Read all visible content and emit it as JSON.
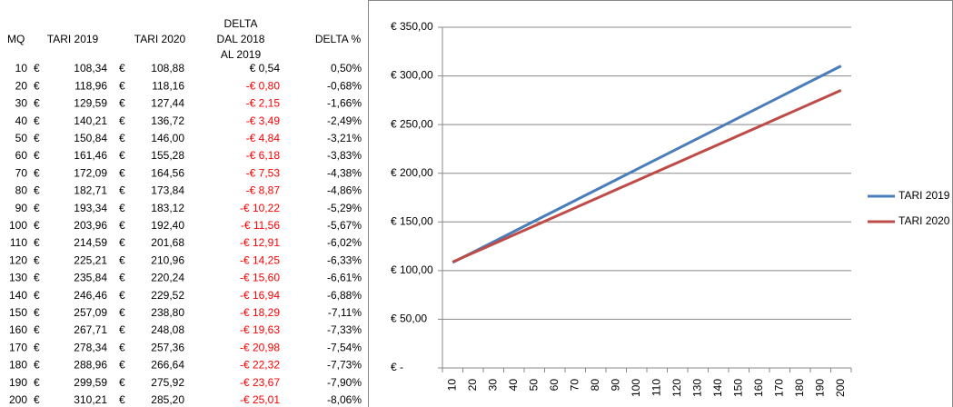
{
  "table": {
    "header": [
      "MQ",
      "TARI 2019",
      "TARI 2020",
      [
        "DELTA",
        "DAL 2018",
        "AL 2019"
      ],
      "DELTA %"
    ],
    "rows": [
      [
        "10",
        "€",
        "108,34",
        "€",
        "108,88",
        "€ 0,54",
        "0,50%"
      ],
      [
        "20",
        "€",
        "118,96",
        "€",
        "118,16",
        "-€ 0,80",
        "-0,68%"
      ],
      [
        "30",
        "€",
        "129,59",
        "€",
        "127,44",
        "-€ 2,15",
        "-1,66%"
      ],
      [
        "40",
        "€",
        "140,21",
        "€",
        "136,72",
        "-€ 3,49",
        "-2,49%"
      ],
      [
        "50",
        "€",
        "150,84",
        "€",
        "146,00",
        "-€ 4,84",
        "-3,21%"
      ],
      [
        "60",
        "€",
        "161,46",
        "€",
        "155,28",
        "-€ 6,18",
        "-3,83%"
      ],
      [
        "70",
        "€",
        "172,09",
        "€",
        "164,56",
        "-€ 7,53",
        "-4,38%"
      ],
      [
        "80",
        "€",
        "182,71",
        "€",
        "173,84",
        "-€ 8,87",
        "-4,86%"
      ],
      [
        "90",
        "€",
        "193,34",
        "€",
        "183,12",
        "-€ 10,22",
        "-5,29%"
      ],
      [
        "100",
        "€",
        "203,96",
        "€",
        "192,40",
        "-€ 11,56",
        "-5,67%"
      ],
      [
        "110",
        "€",
        "214,59",
        "€",
        "201,68",
        "-€ 12,91",
        "-6,02%"
      ],
      [
        "120",
        "€",
        "225,21",
        "€",
        "210,96",
        "-€ 14,25",
        "-6,33%"
      ],
      [
        "130",
        "€",
        "235,84",
        "€",
        "220,24",
        "-€ 15,60",
        "-6,61%"
      ],
      [
        "140",
        "€",
        "246,46",
        "€",
        "229,52",
        "-€ 16,94",
        "-6,88%"
      ],
      [
        "150",
        "€",
        "257,09",
        "€",
        "238,80",
        "-€ 18,29",
        "-7,11%"
      ],
      [
        "160",
        "€",
        "267,71",
        "€",
        "248,08",
        "-€ 19,63",
        "-7,33%"
      ],
      [
        "170",
        "€",
        "278,34",
        "€",
        "257,36",
        "-€ 20,98",
        "-7,54%"
      ],
      [
        "180",
        "€",
        "288,96",
        "€",
        "266,64",
        "-€ 22,32",
        "-7,73%"
      ],
      [
        "190",
        "€",
        "299,59",
        "€",
        "275,92",
        "-€ 23,67",
        "-7,90%"
      ],
      [
        "200",
        "€",
        "310,21",
        "€",
        "285,20",
        "-€ 25,01",
        "-8,06%"
      ]
    ]
  },
  "chart_data": {
    "type": "line",
    "categories": [
      "10",
      "20",
      "30",
      "40",
      "50",
      "60",
      "70",
      "80",
      "90",
      "100",
      "110",
      "120",
      "130",
      "140",
      "150",
      "160",
      "170",
      "180",
      "190",
      "200"
    ],
    "series": [
      {
        "name": "TARI 2019",
        "color": "#4a7ebb",
        "values": [
          108.34,
          118.96,
          129.59,
          140.21,
          150.84,
          161.46,
          172.09,
          182.71,
          193.34,
          203.96,
          214.59,
          225.21,
          235.84,
          246.46,
          257.09,
          267.71,
          278.34,
          288.96,
          299.59,
          310.21
        ]
      },
      {
        "name": "TARI 2020",
        "color": "#be4b48",
        "values": [
          108.88,
          118.16,
          127.44,
          136.72,
          146.0,
          155.28,
          164.56,
          173.84,
          183.12,
          192.4,
          201.68,
          210.96,
          220.24,
          229.52,
          238.8,
          248.08,
          257.36,
          266.64,
          275.92,
          285.2
        ]
      }
    ],
    "ylim": [
      0,
      350
    ],
    "yticks": [
      {
        "value": 0,
        "label": "€ -"
      },
      {
        "value": 50,
        "label": "€ 50,00"
      },
      {
        "value": 100,
        "label": "€ 100,00"
      },
      {
        "value": 150,
        "label": "€ 150,00"
      },
      {
        "value": 200,
        "label": "€ 200,00"
      },
      {
        "value": 250,
        "label": "€ 250,00"
      },
      {
        "value": 300,
        "label": "€ 300,00"
      },
      {
        "value": 350,
        "label": "€ 350,00"
      }
    ],
    "grid": true,
    "legend": "right"
  }
}
